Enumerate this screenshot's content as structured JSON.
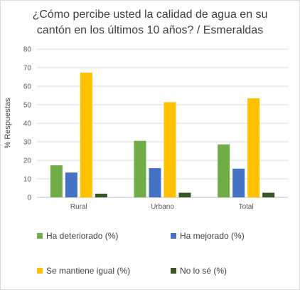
{
  "chart_data": {
    "type": "bar",
    "title_lines": [
      "¿Cómo percibe usted la calidad de agua en su",
      "cantón en los últimos 10 años? / Esmeraldas"
    ],
    "xlabel": "",
    "ylabel": "% Respuestas",
    "ylim": [
      0,
      80
    ],
    "yticks": [
      0,
      10,
      20,
      30,
      40,
      50,
      60,
      70,
      80
    ],
    "grid": true,
    "legend_position": "bottom",
    "categories": [
      "Rural",
      "Urbano",
      "Total"
    ],
    "series": [
      {
        "name": "Ha deteriorado (%)",
        "color": "#70ad47",
        "values": [
          17.3,
          30.5,
          28.6
        ]
      },
      {
        "name": "Ha mejorado (%)",
        "color": "#4472c4",
        "values": [
          13.4,
          15.8,
          15.5
        ]
      },
      {
        "name": "Se mantiene igual (%)",
        "color": "#ffc000",
        "values": [
          67.3,
          51.4,
          53.5
        ]
      },
      {
        "name": "No lo sé (%)",
        "color": "#375623",
        "values": [
          2.0,
          2.5,
          2.5
        ]
      }
    ]
  }
}
